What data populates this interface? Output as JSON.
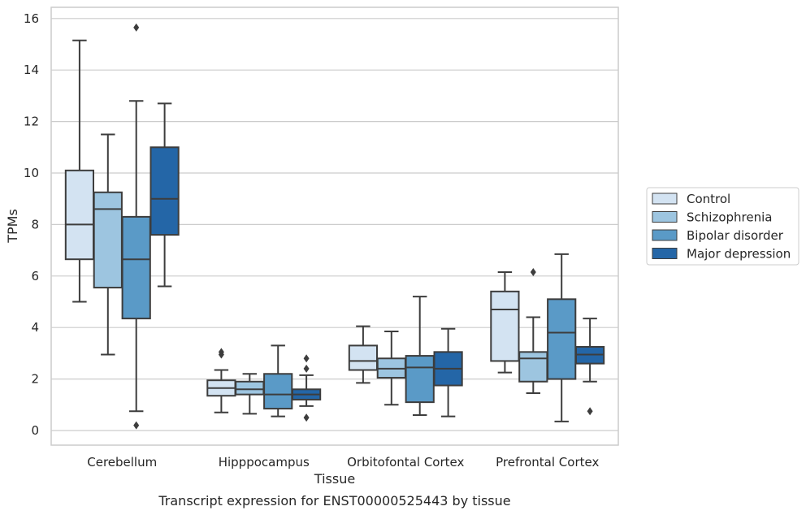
{
  "chart_data": {
    "type": "boxplot",
    "title": "",
    "caption": "Transcript expression for ENST00000525443 by tissue",
    "xlabel": "Tissue",
    "ylabel": "TPMs",
    "ylim": [
      -0.5,
      16.5
    ],
    "yticks": [
      0,
      2,
      4,
      6,
      8,
      10,
      12,
      14,
      16
    ],
    "grid": "horizontal",
    "legend_position": "right",
    "categories": [
      "Cerebellum",
      "Hipppocampus",
      "Orbitofontal Cortex",
      "Prefrontal Cortex"
    ],
    "series": [
      {
        "name": "Control",
        "color": "#d3e3f2",
        "boxes": [
          {
            "whislo": 5.0,
            "q1": 6.65,
            "med": 8.0,
            "q3": 10.1,
            "whishi": 15.15,
            "fliers": []
          },
          {
            "whislo": 0.7,
            "q1": 1.35,
            "med": 1.65,
            "q3": 1.95,
            "whishi": 2.35,
            "fliers": [
              2.95,
              3.05
            ]
          },
          {
            "whislo": 1.85,
            "q1": 2.35,
            "med": 2.7,
            "q3": 3.3,
            "whishi": 4.05,
            "fliers": []
          },
          {
            "whislo": 2.25,
            "q1": 2.7,
            "med": 4.7,
            "q3": 5.4,
            "whishi": 6.15,
            "fliers": []
          }
        ]
      },
      {
        "name": "Schizophrenia",
        "color": "#9dc5e0",
        "boxes": [
          {
            "whislo": 2.95,
            "q1": 5.55,
            "med": 8.6,
            "q3": 9.25,
            "whishi": 11.5,
            "fliers": []
          },
          {
            "whislo": 0.65,
            "q1": 1.4,
            "med": 1.6,
            "q3": 1.9,
            "whishi": 2.2,
            "fliers": []
          },
          {
            "whislo": 1.0,
            "q1": 2.05,
            "med": 2.4,
            "q3": 2.8,
            "whishi": 3.85,
            "fliers": []
          },
          {
            "whislo": 1.45,
            "q1": 1.9,
            "med": 2.8,
            "q3": 3.05,
            "whishi": 4.4,
            "fliers": [
              6.15
            ]
          }
        ]
      },
      {
        "name": "Bipolar disorder",
        "color": "#5a9ac7",
        "boxes": [
          {
            "whislo": 0.75,
            "q1": 4.35,
            "med": 6.65,
            "q3": 8.3,
            "whishi": 12.8,
            "fliers": [
              15.65,
              0.2
            ]
          },
          {
            "whislo": 0.55,
            "q1": 0.85,
            "med": 1.4,
            "q3": 2.2,
            "whishi": 3.3,
            "fliers": []
          },
          {
            "whislo": 0.6,
            "q1": 1.1,
            "med": 2.45,
            "q3": 2.9,
            "whishi": 5.2,
            "fliers": []
          },
          {
            "whislo": 0.35,
            "q1": 2.0,
            "med": 3.8,
            "q3": 5.1,
            "whishi": 6.85,
            "fliers": []
          }
        ]
      },
      {
        "name": "Major depression",
        "color": "#2466a7",
        "boxes": [
          {
            "whislo": 5.6,
            "q1": 7.6,
            "med": 9.0,
            "q3": 11.0,
            "whishi": 12.7,
            "fliers": []
          },
          {
            "whislo": 0.95,
            "q1": 1.2,
            "med": 1.4,
            "q3": 1.6,
            "whishi": 2.15,
            "fliers": [
              2.8,
              2.4,
              0.5
            ]
          },
          {
            "whislo": 0.55,
            "q1": 1.75,
            "med": 2.4,
            "q3": 3.05,
            "whishi": 3.95,
            "fliers": []
          },
          {
            "whislo": 1.9,
            "q1": 2.6,
            "med": 2.95,
            "q3": 3.25,
            "whishi": 4.35,
            "fliers": [
              0.75
            ]
          }
        ]
      }
    ]
  }
}
